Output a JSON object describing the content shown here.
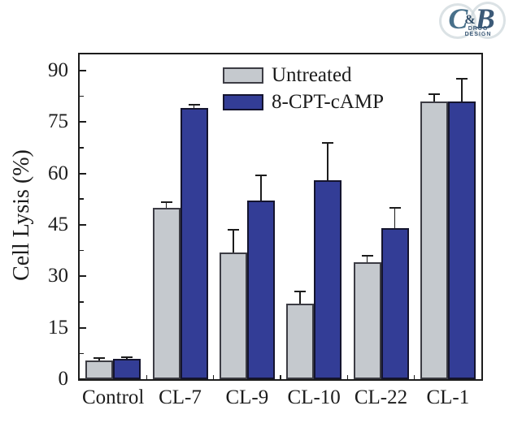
{
  "logo": {
    "letter_c": "C",
    "ampersand": "&",
    "letter_b": "B",
    "text_line1": "DRUG",
    "text_line2": "DESIGN"
  },
  "chart_data": {
    "type": "bar",
    "title": "",
    "ylabel": "Cell Lysis (%)",
    "xlabel": "",
    "categories": [
      "Control",
      "CL-7",
      "CL-9",
      "CL-10",
      "CL-22",
      "CL-1"
    ],
    "series": [
      {
        "name": "Untreated",
        "color": "#c5c9ce",
        "edge_color": "#3c3c44",
        "values": [
          5.5,
          50,
          37,
          22,
          34,
          81
        ],
        "errors_plus": [
          0.7,
          1.5,
          6.5,
          3.5,
          2,
          2
        ]
      },
      {
        "name": "8-CPT-cAMP",
        "color": "#333d96",
        "edge_color": "#14142e",
        "values": [
          6,
          79,
          52,
          58,
          44,
          81
        ],
        "errors_plus": [
          0.4,
          1,
          7.5,
          11,
          6,
          6.5
        ]
      }
    ],
    "yticks": [
      0,
      15,
      30,
      45,
      60,
      75,
      90
    ],
    "y_minor_step": 7.5,
    "ylim": [
      0,
      94.7
    ],
    "grid": false,
    "legend_position": "top-center-inside",
    "error_bars": "upper-only",
    "axis_color": "#1c1c1c",
    "background_color": "#ffffff"
  }
}
